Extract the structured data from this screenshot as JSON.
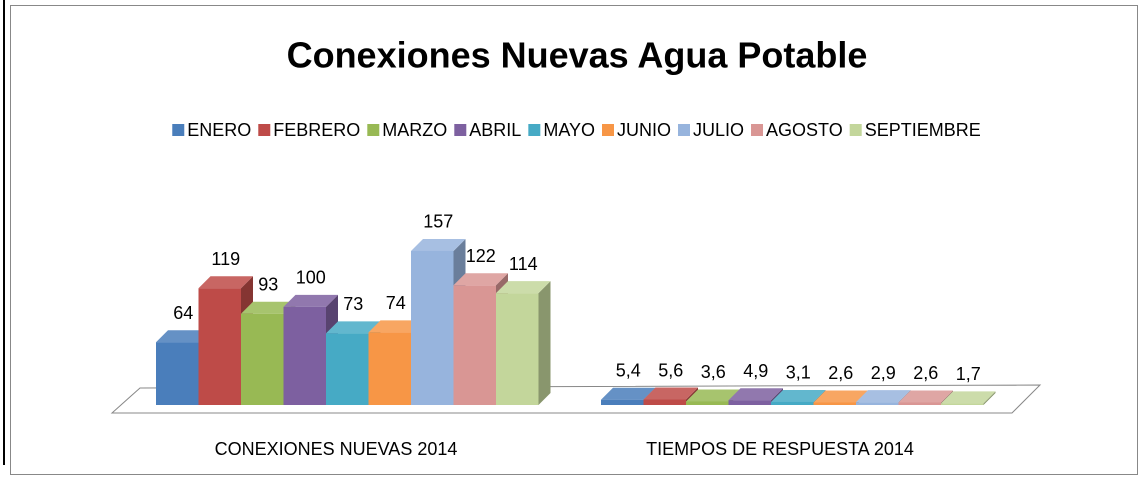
{
  "chart_data": {
    "type": "bar3d",
    "title": "Conexiones Nuevas Agua Potable",
    "categories": [
      "CONEXIONES NUEVAS 2014",
      "TIEMPOS DE RESPUESTA 2014"
    ],
    "ylim": [
      0,
      160
    ],
    "legend": "top",
    "series": [
      {
        "name": "ENERO",
        "color": "#4a7ebb",
        "values": [
          64,
          5.4
        ],
        "value_labels": [
          "64",
          "5,4"
        ]
      },
      {
        "name": "FEBRERO",
        "color": "#be4b48",
        "values": [
          119,
          5.6
        ],
        "value_labels": [
          "119",
          "5,6"
        ]
      },
      {
        "name": "MARZO",
        "color": "#98b954",
        "values": [
          93,
          3.6
        ],
        "value_labels": [
          "93",
          "3,6"
        ]
      },
      {
        "name": "ABRIL",
        "color": "#7d60a0",
        "values": [
          100,
          4.9
        ],
        "value_labels": [
          "100",
          "4,9"
        ]
      },
      {
        "name": "MAYO",
        "color": "#46aac5",
        "values": [
          73,
          3.1
        ],
        "value_labels": [
          "73",
          "3,1"
        ]
      },
      {
        "name": "JUNIO",
        "color": "#f79646",
        "values": [
          74,
          2.6
        ],
        "value_labels": [
          "74",
          "2,6"
        ]
      },
      {
        "name": "JULIO",
        "color": "#97b4dd",
        "values": [
          157,
          2.9
        ],
        "value_labels": [
          "157",
          "2,9"
        ]
      },
      {
        "name": "AGOSTO",
        "color": "#d99694",
        "values": [
          122,
          2.6
        ],
        "value_labels": [
          "122",
          "2,6"
        ]
      },
      {
        "name": "SEPTIEMBRE",
        "color": "#c3d69b",
        "values": [
          114,
          1.7
        ],
        "value_labels": [
          "114",
          "1,7"
        ]
      }
    ]
  }
}
